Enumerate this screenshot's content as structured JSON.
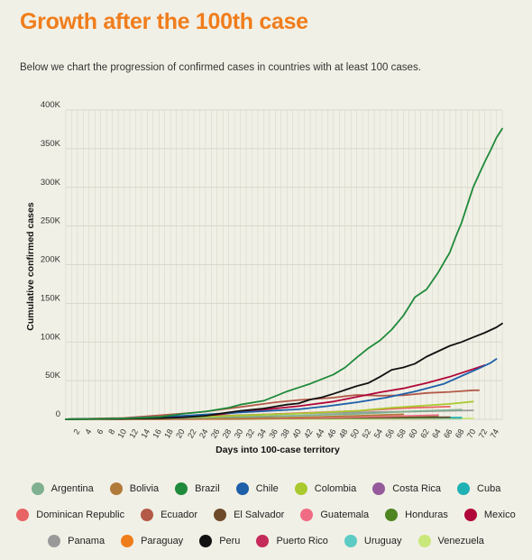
{
  "header": {
    "title": "Growth after the 100th case",
    "subtitle": "Below we chart the progression of confirmed cases in countries with at least 100 cases."
  },
  "chart_data": {
    "type": "line",
    "xlabel": "Days into 100-case territory",
    "ylabel": "Cumulative confirmed cases",
    "xlim": [
      0,
      75
    ],
    "ylim": [
      0,
      400000
    ],
    "x_ticks": [
      2,
      4,
      6,
      8,
      10,
      12,
      14,
      16,
      18,
      20,
      22,
      24,
      26,
      28,
      30,
      32,
      34,
      36,
      38,
      40,
      42,
      44,
      46,
      48,
      50,
      52,
      54,
      56,
      58,
      60,
      62,
      64,
      66,
      68,
      70,
      72,
      74
    ],
    "y_ticks": [
      {
        "value": 0,
        "label": "0"
      },
      {
        "value": 50000,
        "label": "50K"
      },
      {
        "value": 100000,
        "label": "100K"
      },
      {
        "value": 150000,
        "label": "150K"
      },
      {
        "value": 200000,
        "label": "200K"
      },
      {
        "value": 250000,
        "label": "250K"
      },
      {
        "value": 300000,
        "label": "300K"
      },
      {
        "value": 350000,
        "label": "350K"
      },
      {
        "value": 400000,
        "label": "400K"
      }
    ],
    "grid": true,
    "legend_position": "bottom",
    "series": [
      {
        "name": "Argentina",
        "color": "#7fb08f",
        "points": [
          [
            0,
            100
          ],
          [
            10,
            900
          ],
          [
            20,
            1800
          ],
          [
            30,
            3200
          ],
          [
            40,
            4800
          ],
          [
            50,
            7000
          ],
          [
            60,
            10500
          ],
          [
            68,
            12500
          ]
        ]
      },
      {
        "name": "Bolivia",
        "color": "#b07a3a",
        "points": [
          [
            0,
            100
          ],
          [
            20,
            700
          ],
          [
            30,
            1200
          ],
          [
            40,
            2500
          ],
          [
            50,
            4500
          ],
          [
            58,
            6500
          ]
        ]
      },
      {
        "name": "Brazil",
        "color": "#1f8a3b",
        "points": [
          [
            0,
            100
          ],
          [
            4,
            300
          ],
          [
            8,
            800
          ],
          [
            12,
            1600
          ],
          [
            16,
            3000
          ],
          [
            20,
            7000
          ],
          [
            24,
            10000
          ],
          [
            28,
            15000
          ],
          [
            30,
            19000
          ],
          [
            34,
            24000
          ],
          [
            36,
            30000
          ],
          [
            38,
            36000
          ],
          [
            40,
            41000
          ],
          [
            42,
            46000
          ],
          [
            44,
            52000
          ],
          [
            46,
            58000
          ],
          [
            48,
            67000
          ],
          [
            50,
            80000
          ],
          [
            52,
            92000
          ],
          [
            54,
            102000
          ],
          [
            56,
            116000
          ],
          [
            58,
            134000
          ],
          [
            60,
            158000
          ],
          [
            62,
            168000
          ],
          [
            64,
            190000
          ],
          [
            66,
            216000
          ],
          [
            67,
            236000
          ],
          [
            68,
            254000
          ],
          [
            70,
            300000
          ],
          [
            72,
            333000
          ],
          [
            73,
            348000
          ],
          [
            74,
            364000
          ],
          [
            75,
            376000
          ]
        ]
      },
      {
        "name": "Chile",
        "color": "#1d5fa8",
        "points": [
          [
            0,
            100
          ],
          [
            10,
            1200
          ],
          [
            20,
            4500
          ],
          [
            30,
            9000
          ],
          [
            40,
            13000
          ],
          [
            45,
            17000
          ],
          [
            50,
            22000
          ],
          [
            55,
            28000
          ],
          [
            60,
            36000
          ],
          [
            65,
            46000
          ],
          [
            68,
            56000
          ],
          [
            71,
            66000
          ],
          [
            73,
            73000
          ],
          [
            74,
            78000
          ]
        ]
      },
      {
        "name": "Colombia",
        "color": "#a9c92e",
        "points": [
          [
            0,
            100
          ],
          [
            10,
            800
          ],
          [
            20,
            2500
          ],
          [
            30,
            5000
          ],
          [
            40,
            7500
          ],
          [
            50,
            11000
          ],
          [
            56,
            15000
          ],
          [
            62,
            18000
          ],
          [
            66,
            20000
          ],
          [
            70,
            23000
          ]
        ]
      },
      {
        "name": "Costa Rica",
        "color": "#955a9b",
        "points": [
          [
            0,
            100
          ],
          [
            20,
            500
          ],
          [
            40,
            700
          ],
          [
            60,
            900
          ],
          [
            68,
            1000
          ]
        ]
      },
      {
        "name": "Cuba",
        "color": "#1fb1b3",
        "points": [
          [
            0,
            100
          ],
          [
            20,
            1000
          ],
          [
            40,
            1700
          ],
          [
            60,
            1950
          ],
          [
            68,
            2050
          ]
        ]
      },
      {
        "name": "Dominican Republic",
        "color": "#e86464",
        "points": [
          [
            0,
            100
          ],
          [
            10,
            1100
          ],
          [
            20,
            2800
          ],
          [
            30,
            5000
          ],
          [
            40,
            8000
          ],
          [
            50,
            11000
          ],
          [
            58,
            14500
          ],
          [
            66,
            16500
          ]
        ]
      },
      {
        "name": "Ecuador",
        "color": "#b35a48",
        "points": [
          [
            0,
            100
          ],
          [
            10,
            1800
          ],
          [
            20,
            7500
          ],
          [
            24,
            10000
          ],
          [
            28,
            14000
          ],
          [
            32,
            18000
          ],
          [
            36,
            22000
          ],
          [
            40,
            25000
          ],
          [
            46,
            28000
          ],
          [
            48,
            30000
          ],
          [
            50,
            31500
          ],
          [
            54,
            30500
          ],
          [
            58,
            31000
          ],
          [
            62,
            34000
          ],
          [
            66,
            35500
          ],
          [
            70,
            37500
          ],
          [
            71,
            37500
          ]
        ]
      },
      {
        "name": "El Salvador",
        "color": "#6d4a2a",
        "points": [
          [
            0,
            100
          ],
          [
            20,
            300
          ],
          [
            40,
            1200
          ],
          [
            60,
            2300
          ],
          [
            66,
            2800
          ]
        ]
      },
      {
        "name": "Guatemala",
        "color": "#f06b84",
        "points": [
          [
            0,
            100
          ],
          [
            20,
            300
          ],
          [
            40,
            1500
          ],
          [
            50,
            3000
          ],
          [
            60,
            4700
          ],
          [
            64,
            5500
          ]
        ]
      },
      {
        "name": "Honduras",
        "color": "#4e8521",
        "points": [
          [
            0,
            100
          ],
          [
            20,
            500
          ],
          [
            40,
            1500
          ],
          [
            50,
            2500
          ],
          [
            60,
            4000
          ],
          [
            64,
            4700
          ]
        ]
      },
      {
        "name": "Mexico",
        "color": "#b1063a",
        "points": [
          [
            0,
            100
          ],
          [
            10,
            900
          ],
          [
            20,
            3000
          ],
          [
            26,
            6000
          ],
          [
            30,
            9500
          ],
          [
            36,
            14000
          ],
          [
            40,
            17000
          ],
          [
            46,
            23000
          ],
          [
            50,
            29000
          ],
          [
            54,
            35000
          ],
          [
            58,
            40000
          ],
          [
            62,
            47000
          ],
          [
            66,
            55000
          ],
          [
            70,
            65000
          ],
          [
            72,
            70000
          ]
        ]
      },
      {
        "name": "Panama",
        "color": "#999999",
        "points": [
          [
            0,
            100
          ],
          [
            10,
            1300
          ],
          [
            20,
            3500
          ],
          [
            30,
            5500
          ],
          [
            40,
            7500
          ],
          [
            50,
            9000
          ],
          [
            60,
            10200
          ],
          [
            70,
            11500
          ]
        ]
      },
      {
        "name": "Paraguay",
        "color": "#f07d1c",
        "points": [
          [
            0,
            100
          ],
          [
            20,
            200
          ],
          [
            40,
            500
          ],
          [
            60,
            800
          ],
          [
            64,
            900
          ]
        ]
      },
      {
        "name": "Peru",
        "color": "#111111",
        "points": [
          [
            0,
            100
          ],
          [
            10,
            700
          ],
          [
            16,
            1500
          ],
          [
            20,
            2500
          ],
          [
            24,
            4500
          ],
          [
            28,
            9000
          ],
          [
            30,
            11000
          ],
          [
            34,
            14000
          ],
          [
            38,
            19000
          ],
          [
            40,
            20500
          ],
          [
            42,
            25500
          ],
          [
            44,
            28500
          ],
          [
            46,
            33000
          ],
          [
            48,
            38000
          ],
          [
            50,
            43000
          ],
          [
            52,
            47000
          ],
          [
            54,
            55000
          ],
          [
            56,
            64000
          ],
          [
            58,
            67000
          ],
          [
            60,
            72000
          ],
          [
            62,
            81000
          ],
          [
            64,
            88000
          ],
          [
            66,
            95000
          ],
          [
            68,
            100000
          ],
          [
            70,
            106000
          ],
          [
            72,
            112000
          ],
          [
            74,
            119000
          ],
          [
            75,
            124000
          ]
        ]
      },
      {
        "name": "Puerto Rico",
        "color": "#c42a5a",
        "points": [
          [
            0,
            100
          ],
          [
            10,
            400
          ],
          [
            20,
            900
          ],
          [
            30,
            1400
          ],
          [
            40,
            1900
          ],
          [
            50,
            2500
          ],
          [
            56,
            2900
          ]
        ]
      },
      {
        "name": "Uruguay",
        "color": "#5ccbc4",
        "points": [
          [
            0,
            100
          ],
          [
            20,
            500
          ],
          [
            40,
            600
          ],
          [
            60,
            750
          ],
          [
            68,
            780
          ]
        ]
      },
      {
        "name": "Venezuela",
        "color": "#c9e87a",
        "points": [
          [
            0,
            100
          ],
          [
            20,
            200
          ],
          [
            40,
            300
          ],
          [
            50,
            500
          ],
          [
            60,
            1000
          ],
          [
            70,
            1300
          ]
        ]
      }
    ]
  },
  "legend": {
    "rows": [
      [
        {
          "name": "Argentina",
          "color": "#7fb08f"
        },
        {
          "name": "Bolivia",
          "color": "#b07a3a"
        },
        {
          "name": "Brazil",
          "color": "#1f8a3b"
        },
        {
          "name": "Chile",
          "color": "#1d5fa8"
        },
        {
          "name": "Colombia",
          "color": "#a9c92e"
        },
        {
          "name": "Costa Rica",
          "color": "#955a9b"
        },
        {
          "name": "Cuba",
          "color": "#1fb1b3"
        }
      ],
      [
        {
          "name": "Dominican Republic",
          "color": "#e86464"
        },
        {
          "name": "Ecuador",
          "color": "#b35a48"
        },
        {
          "name": "El Salvador",
          "color": "#6d4a2a"
        },
        {
          "name": "Guatemala",
          "color": "#f06b84"
        },
        {
          "name": "Honduras",
          "color": "#4e8521"
        },
        {
          "name": "Mexico",
          "color": "#b1063a"
        }
      ],
      [
        {
          "name": "Panama",
          "color": "#999999"
        },
        {
          "name": "Paraguay",
          "color": "#f07d1c"
        },
        {
          "name": "Peru",
          "color": "#111111"
        },
        {
          "name": "Puerto Rico",
          "color": "#c42a5a"
        },
        {
          "name": "Uruguay",
          "color": "#5ccbc4"
        },
        {
          "name": "Venezuela",
          "color": "#c9e87a"
        }
      ]
    ]
  }
}
